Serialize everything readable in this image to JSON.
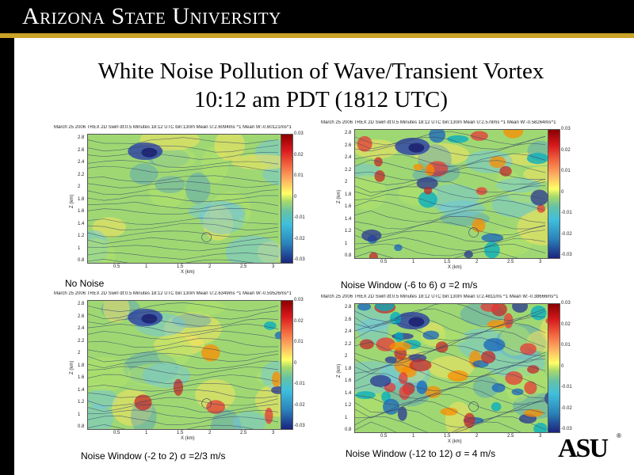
{
  "header": {
    "title": "Arizona State University"
  },
  "slide": {
    "title_line1": "White Noise Pollution of Wave/Transient Vortex",
    "title_line2": "10:12 am PDT (1812 UTC)"
  },
  "axes": {
    "ylabel": "Z (km)",
    "xlabel": "X (km)",
    "yticks": [
      "2.8",
      "2.6",
      "2.4",
      "2.2",
      "2",
      "1.8",
      "1.6",
      "1.4",
      "1.2",
      "1",
      "0.8"
    ],
    "xticks": [
      "0.5",
      "1",
      "1.5",
      "2",
      "2.5",
      "3"
    ],
    "cticks": [
      "0.03",
      "0.02",
      "0.01",
      "0",
      "-0.01",
      "-0.02",
      "-0.03"
    ]
  },
  "panels": [
    {
      "header": "March 25 2006 TREX 2D Swirl dt:0.5 Minutes  18:12 UTC  bin:130m Mean U:2.6094ms ^1 Mean W:-0.60121ms^1",
      "caption": "No Noise",
      "noise": 0
    },
    {
      "header": "March 25 2006 TREX 2D Swirl dt:0.5 Minutes  18:12 UTC  bin:130m Mean U:2.578ms ^1 Mean W:-0.58264ms^1",
      "caption": "Noise Window (-6 to 6)  σ =2 m/s",
      "noise": 2
    },
    {
      "header": "March 25 2006 TREX 2D Swirl dt:0.5 Minutes  18:12 UTC  bin:130m Mean U:2.6349ms ^1 Mean W:-0.59526ms^1",
      "caption": "Noise Window (-2 to 2)  σ =2/3 m/s",
      "noise": 0.6667
    },
    {
      "header": "March 25 2006 TREX 2D Swirl dt:0.5 Minutes  18:12 UTC  bin:130m Mean U:2.4811ms ^1 Mean W:-0.38666ms^1",
      "caption": "Noise Window (-12 to 12)  σ = 4 m/s",
      "noise": 4
    }
  ],
  "logo": {
    "text": "ASU",
    "mark": "®"
  }
}
